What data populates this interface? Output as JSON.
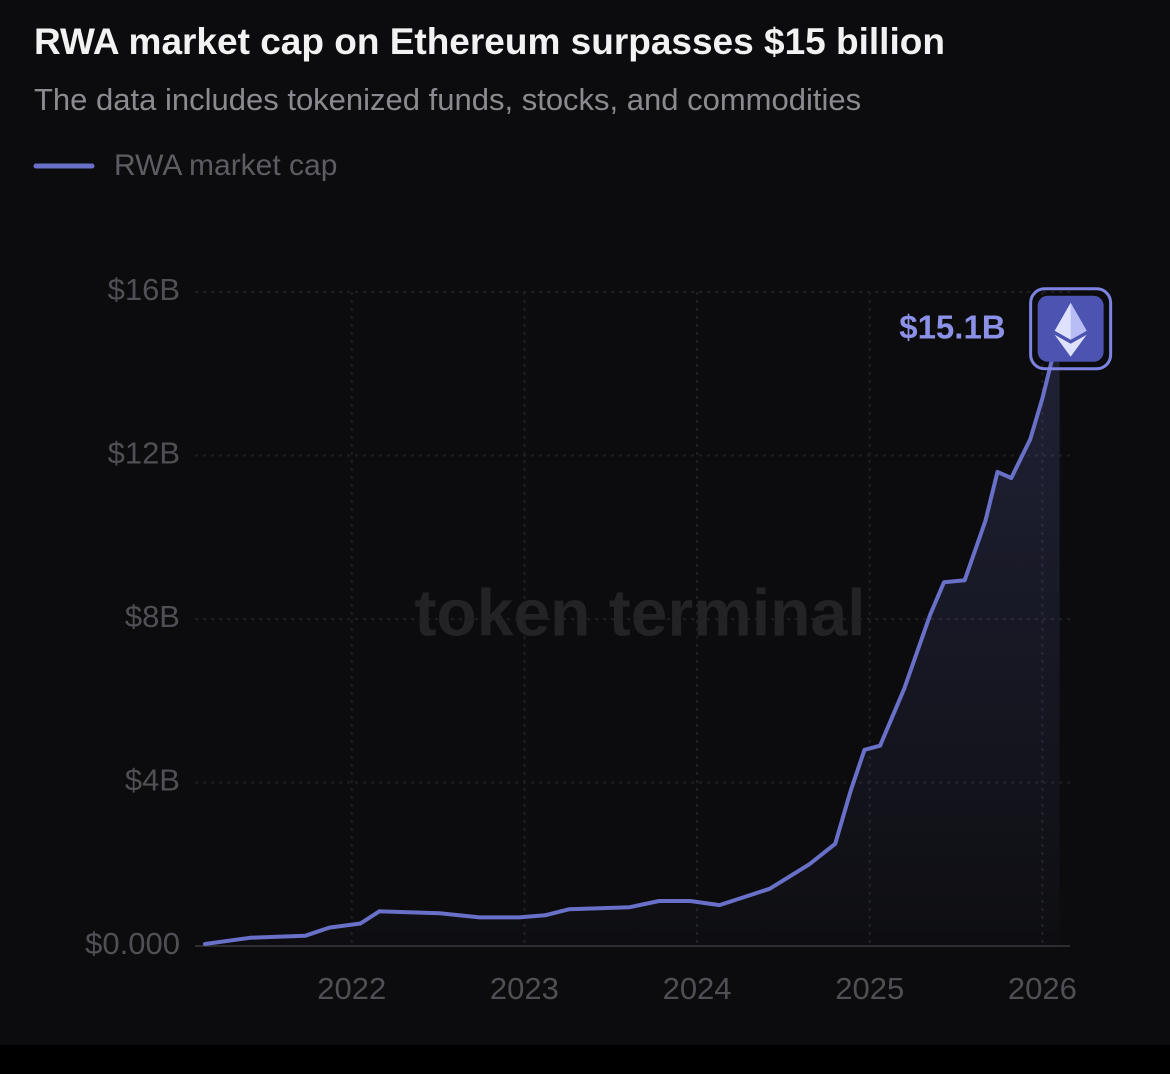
{
  "chart_data": {
    "type": "line",
    "title": "RWA market cap on Ethereum surpasses $15 billion",
    "subtitle": "The data includes tokenized funds, stocks, and commodities",
    "watermark": "token terminal",
    "x": [
      2021.15,
      2021.41,
      2021.73,
      2021.87,
      2022.05,
      2022.16,
      2022.51,
      2022.74,
      2022.97,
      2023.12,
      2023.26,
      2023.61,
      2023.78,
      2023.96,
      2024.13,
      2024.42,
      2024.65,
      2024.8,
      2024.89,
      2024.97,
      2025.06,
      2025.2,
      2025.35,
      2025.43,
      2025.55,
      2025.67,
      2025.74,
      2025.82,
      2025.93,
      2026.0,
      2026.1
    ],
    "series": [
      {
        "name": "RWA market cap",
        "color": "#6970c8",
        "values": [
          0.05,
          0.2,
          0.25,
          0.45,
          0.55,
          0.85,
          0.8,
          0.7,
          0.7,
          0.75,
          0.9,
          0.95,
          1.1,
          1.1,
          1.0,
          1.4,
          2.0,
          2.5,
          3.8,
          4.8,
          4.9,
          6.3,
          8.1,
          8.9,
          8.95,
          10.4,
          11.6,
          11.45,
          12.4,
          13.4,
          15.1
        ],
        "value_labels": [
          null,
          null,
          null,
          null,
          null,
          null,
          null,
          null,
          null,
          null,
          null,
          null,
          null,
          null,
          null,
          null,
          null,
          null,
          null,
          null,
          null,
          null,
          null,
          null,
          null,
          null,
          null,
          null,
          null,
          null,
          "$15.1B"
        ]
      }
    ],
    "xlim": [
      2021.15,
      2026.16
    ],
    "xticks": [
      2022,
      2023,
      2024,
      2025,
      2026
    ],
    "ylim": [
      0,
      16
    ],
    "yticks": [
      {
        "value": 0,
        "label": "$0.000"
      },
      {
        "value": 4,
        "label": "$4B"
      },
      {
        "value": 8,
        "label": "$8B"
      },
      {
        "value": 12,
        "label": "$12B"
      },
      {
        "value": 16,
        "label": "$16B"
      }
    ],
    "grid": true
  }
}
